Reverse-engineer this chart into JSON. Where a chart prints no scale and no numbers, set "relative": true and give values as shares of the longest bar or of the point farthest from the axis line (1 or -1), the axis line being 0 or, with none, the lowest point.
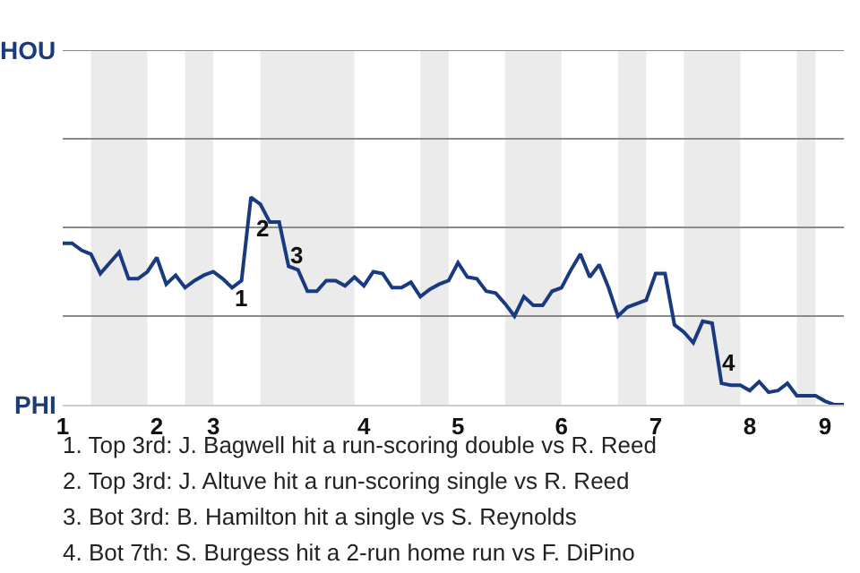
{
  "chart_data": {
    "type": "line",
    "relative": true,
    "categories": [
      "1",
      null,
      null,
      null,
      null,
      null,
      null,
      null,
      null,
      null,
      "2",
      null,
      null,
      null,
      null,
      null,
      "3",
      null,
      null,
      null,
      null,
      null,
      null,
      null,
      null,
      null,
      null,
      null,
      null,
      null,
      null,
      null,
      "4",
      null,
      null,
      null,
      null,
      null,
      null,
      null,
      null,
      null,
      "5",
      null,
      null,
      null,
      null,
      null,
      null,
      null,
      null,
      null,
      null,
      "6",
      null,
      null,
      null,
      null,
      null,
      null,
      null,
      null,
      null,
      "7",
      null,
      null,
      null,
      null,
      null,
      null,
      null,
      null,
      null,
      "8",
      null,
      null,
      null,
      null,
      null,
      null,
      null,
      "9",
      null,
      null
    ],
    "series": [
      {
        "color": "#1a3a80",
        "values": [
          0.778,
          0.778,
          0.744,
          0.726,
          0.632,
          0.684,
          0.735,
          0.607,
          0.607,
          0.641,
          0.709,
          0.581,
          0.624,
          0.564,
          0.598,
          0.624,
          0.641,
          0.607,
          0.564,
          0.598,
          1,
          0.966,
          0.88,
          0.88,
          0.667,
          0.65,
          0.547,
          0.547,
          0.598,
          0.598,
          0.573,
          0.615,
          0.573,
          0.641,
          0.632,
          0.564,
          0.564,
          0.59,
          0.521,
          0.556,
          0.581,
          0.598,
          0.684,
          0.615,
          0.607,
          0.547,
          0.538,
          0.487,
          0.427,
          0.521,
          0.479,
          0.479,
          0.547,
          0.564,
          0.65,
          0.726,
          0.615,
          0.675,
          0.564,
          0.427,
          0.47,
          0.487,
          0.504,
          0.632,
          0.632,
          0.385,
          0.35,
          0.299,
          0.402,
          0.393,
          0.103,
          0.094,
          0.094,
          0.068,
          0.111,
          0.06,
          0.068,
          0.103,
          0.043,
          0.043,
          0.043,
          0.017,
          0,
          0
        ]
      }
    ],
    "marker": "none",
    "line_style": "solid",
    "ref_lines": [
      {
        "axis": "y",
        "value": 0.427,
        "color": "#8a8a8a"
      },
      {
        "axis": "y",
        "value": 0.855,
        "color": "#8a8a8a"
      },
      {
        "axis": "y",
        "value": 1.282,
        "color": "#8a8a8a"
      },
      {
        "axis": "y",
        "value": 1.709,
        "color": "#8a8a8a"
      }
    ],
    "annotations": [
      "HOU",
      "PHI",
      "1",
      "2",
      "3",
      "4",
      "1. Top 3rd: J. Bagwell hit a run-scoring double vs R. Reed",
      "2. Top 3rd: J. Altuve hit a run-scoring single vs R. Reed",
      "3. Bot 3rd: B. Hamilton hit a single vs S. Reynolds",
      "4. Bot 7th: S. Burgess hit a 2-run home run vs F. DiPino"
    ]
  }
}
